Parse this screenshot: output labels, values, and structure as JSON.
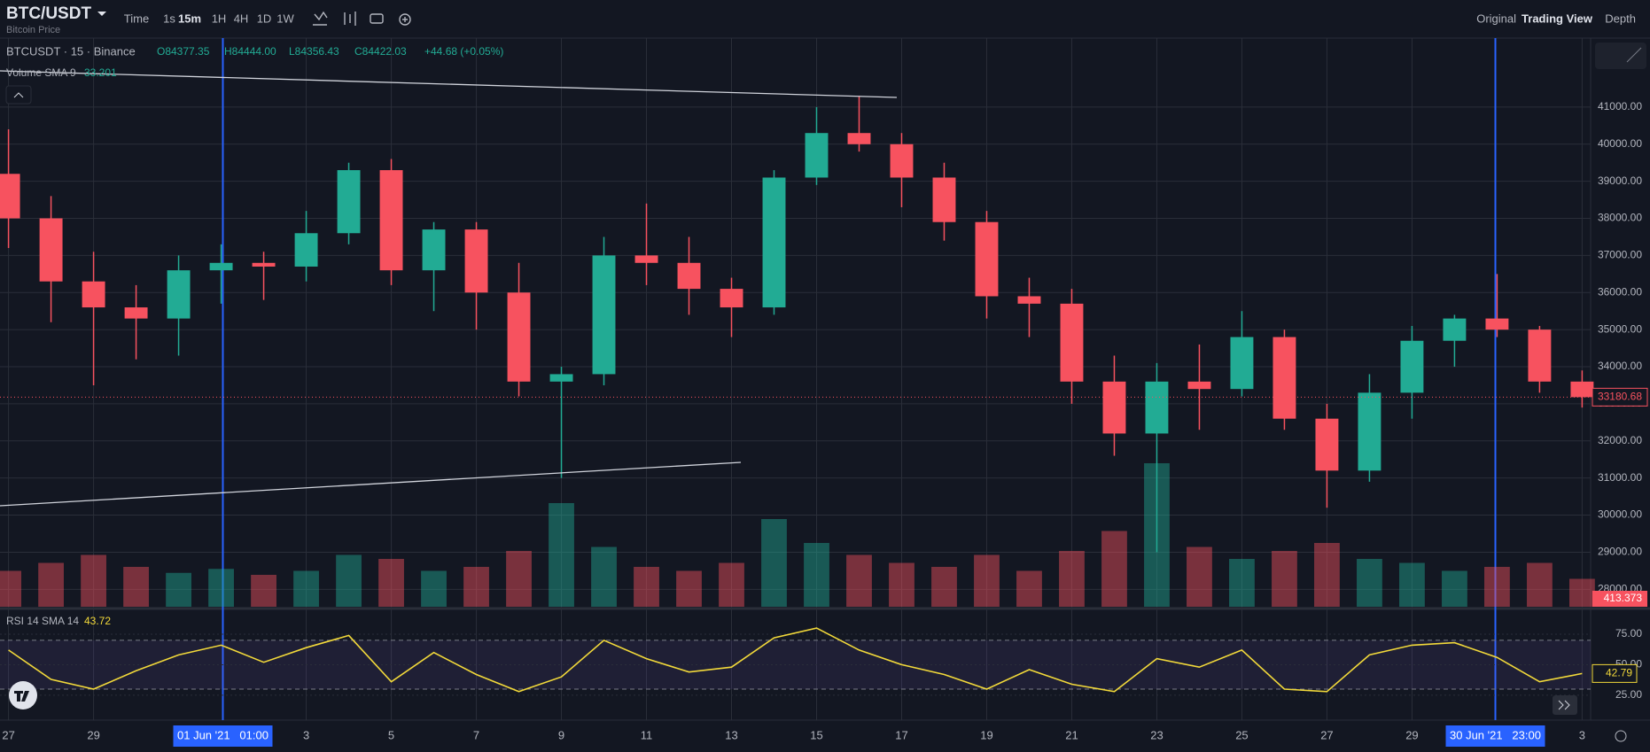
{
  "toolbar": {
    "intervals": [
      "Time",
      "1s",
      "15m",
      "1H",
      "4H",
      "1D",
      "1W"
    ],
    "views": [
      "Original",
      "Trading View",
      "Depth"
    ]
  },
  "chart_data": {
    "type": "candlestick",
    "title": "BTC/USDT",
    "subtitle": "Bitcoin Price",
    "legend": "BTCUSDT · 15 · Binance",
    "readout": [
      "O84377.35",
      "H84444.00",
      "L84356.43",
      "C84422.03",
      "+44.68 (+0.05%)"
    ],
    "open": [
      39200,
      38000,
      36300,
      35600,
      35300,
      36600,
      36800,
      36700,
      37600,
      39300,
      36600,
      37700,
      36000,
      33600,
      33800,
      37000,
      36800,
      36100,
      35600,
      39100,
      40300,
      40000,
      39100,
      37900,
      35900,
      35700,
      33600,
      32200,
      33600,
      33400,
      34800,
      32600,
      31200,
      33300,
      34700,
      35300,
      35000,
      33600
    ],
    "high": [
      40400,
      38600,
      37100,
      36200,
      37000,
      37300,
      37100,
      38200,
      39500,
      39600,
      37900,
      37900,
      36800,
      34000,
      37500,
      38400,
      37500,
      36400,
      39300,
      41000,
      41300,
      40300,
      39500,
      38200,
      36400,
      36100,
      34300,
      34100,
      34600,
      35500,
      35000,
      33000,
      33800,
      35100,
      35400,
      36500,
      35100,
      33900
    ],
    "low": [
      37200,
      35200,
      33500,
      34200,
      34300,
      35700,
      35800,
      36300,
      37300,
      36200,
      35500,
      35000,
      33200,
      31000,
      33500,
      36200,
      35400,
      34800,
      35400,
      38900,
      39800,
      38300,
      37400,
      35300,
      34800,
      33000,
      31600,
      29000,
      32300,
      33200,
      32300,
      30200,
      30900,
      32600,
      34000,
      34800,
      33300,
      32900
    ],
    "close": [
      38000,
      36300,
      35600,
      35300,
      36600,
      36800,
      36700,
      37600,
      39300,
      36600,
      37700,
      36000,
      33600,
      33800,
      37000,
      36800,
      36100,
      35600,
      39100,
      40300,
      40000,
      39100,
      37900,
      35900,
      35700,
      33600,
      32200,
      33600,
      33400,
      34800,
      32600,
      31200,
      33300,
      34700,
      35300,
      35000,
      33600,
      33180.68
    ],
    "up_color": "#22ab94",
    "down_color": "#f7525f",
    "xlim": [
      -0.2,
      37.2
    ],
    "xticks": [
      {
        "value": 0,
        "label": "27"
      },
      {
        "value": 2,
        "label": "29"
      },
      {
        "value": 5.04,
        "label": "01 Jun '21   01:00"
      },
      {
        "value": 7,
        "label": "3"
      },
      {
        "value": 9,
        "label": "5"
      },
      {
        "value": 11,
        "label": "7"
      },
      {
        "value": 13,
        "label": "9"
      },
      {
        "value": 15,
        "label": "11"
      },
      {
        "value": 17,
        "label": "13"
      },
      {
        "value": 19,
        "label": "15"
      },
      {
        "value": 21,
        "label": "17"
      },
      {
        "value": 23,
        "label": "19"
      },
      {
        "value": 25,
        "label": "21"
      },
      {
        "value": 27,
        "label": "23"
      },
      {
        "value": 29,
        "label": "25"
      },
      {
        "value": 31,
        "label": "27"
      },
      {
        "value": 33,
        "label": "29"
      },
      {
        "value": 34.96,
        "label": "30 Jun '21   23:00"
      },
      {
        "value": 37,
        "label": "3"
      }
    ],
    "ylim": [
      27530,
      42860
    ],
    "yticks": [
      {
        "value": 28000,
        "label": "28000.00"
      },
      {
        "value": 29000,
        "label": "29000.00"
      },
      {
        "value": 30000,
        "label": "30000.00"
      },
      {
        "value": 31000,
        "label": "31000.00"
      },
      {
        "value": 32000,
        "label": "32000.00"
      },
      {
        "value": 33000,
        "label": "33000.00"
      },
      {
        "value": 34000,
        "label": "34000.00"
      },
      {
        "value": 35000,
        "label": "35000.00"
      },
      {
        "value": 36000,
        "label": "36000.00"
      },
      {
        "value": 37000,
        "label": "37000.00"
      },
      {
        "value": 38000,
        "label": "38000.00"
      },
      {
        "value": 39000,
        "label": "39000.00"
      },
      {
        "value": 40000,
        "label": "40000.00"
      },
      {
        "value": 41000,
        "label": "41000.00"
      }
    ],
    "last_price": {
      "value": 33180.68,
      "label": "33180.68"
    },
    "grid": true,
    "volume": {
      "title": "Volume SMA 9",
      "readout": "33.201",
      "last_label": "413.373",
      "ylim": [
        0,
        4000
      ],
      "values": [
        900,
        1100,
        1300,
        1000,
        850,
        950,
        800,
        900,
        1300,
        1200,
        900,
        1000,
        1400,
        2600,
        1500,
        1000,
        900,
        1100,
        2200,
        1600,
        1300,
        1100,
        1000,
        1300,
        900,
        1400,
        1900,
        3600,
        1500,
        1200,
        1400,
        1600,
        1200,
        1100,
        900,
        1000,
        1100,
        700
      ]
    },
    "rsi": {
      "title": "RSI 14 SMA 14",
      "readout": "43.72",
      "color": "#f2d93a",
      "ylim": [
        4.6,
        94.6
      ],
      "yticks": [
        {
          "value": 25,
          "label": "25.00"
        },
        {
          "value": 50,
          "label": "50.00"
        },
        {
          "value": 75,
          "label": "75.00"
        }
      ],
      "bands": [
        30,
        70
      ],
      "last": {
        "value": 42.79,
        "label": "42.79"
      },
      "values": [
        62,
        38,
        30,
        45,
        58,
        66,
        52,
        64,
        74,
        36,
        60,
        42,
        28,
        40,
        70,
        55,
        44,
        48,
        72,
        80,
        62,
        50,
        42,
        30,
        46,
        34,
        28,
        55,
        48,
        62,
        30,
        28,
        58,
        66,
        68,
        56,
        36,
        42.79
      ]
    }
  }
}
